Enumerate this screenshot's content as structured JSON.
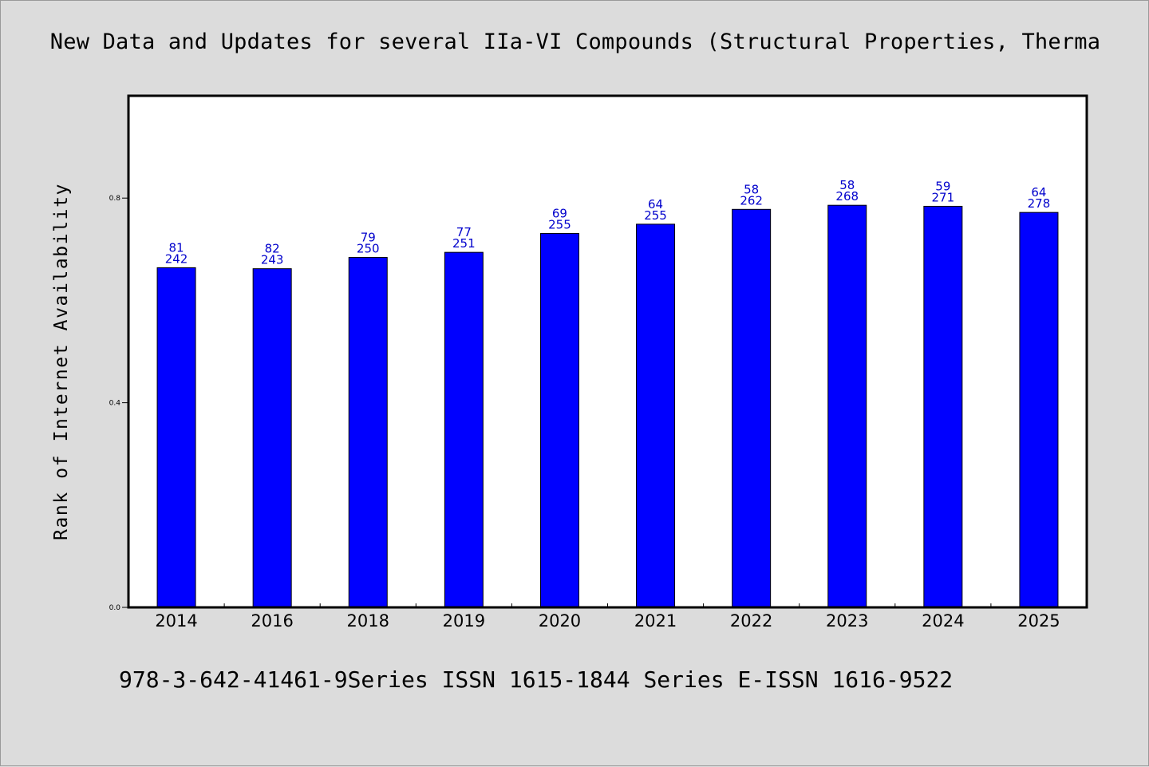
{
  "chart_data": {
    "type": "bar",
    "title": "New Data and Updates for several IIa-VI Compounds (Structural Properties, Therma",
    "xlabel": "",
    "ylabel": "Rank of Internet Availability",
    "categories": [
      "2014",
      "2016",
      "2018",
      "2019",
      "2020",
      "2021",
      "2022",
      "2023",
      "2024",
      "2025"
    ],
    "values": [
      0.664,
      0.662,
      0.684,
      0.694,
      0.731,
      0.749,
      0.778,
      0.786,
      0.784,
      0.772
    ],
    "annotations_top": [
      "81",
      "82",
      "79",
      "77",
      "69",
      "64",
      "58",
      "58",
      "59",
      "64"
    ],
    "annotations_bottom": [
      "242",
      "243",
      "250",
      "251",
      "255",
      "255",
      "262",
      "268",
      "271",
      "278"
    ],
    "yticks": [
      "0.0",
      "0.4",
      "0.8"
    ],
    "ytick_values": [
      0.0,
      0.4,
      0.8
    ],
    "ylim": [
      0,
      1.0
    ],
    "grid": false,
    "legend": "none",
    "bar_color": "#0000ff",
    "label_color": "#0000cc"
  },
  "footer": {
    "text": "978-3-642-41461-9Series ISSN 1615-1844 Series E-ISSN 1616-9522"
  }
}
